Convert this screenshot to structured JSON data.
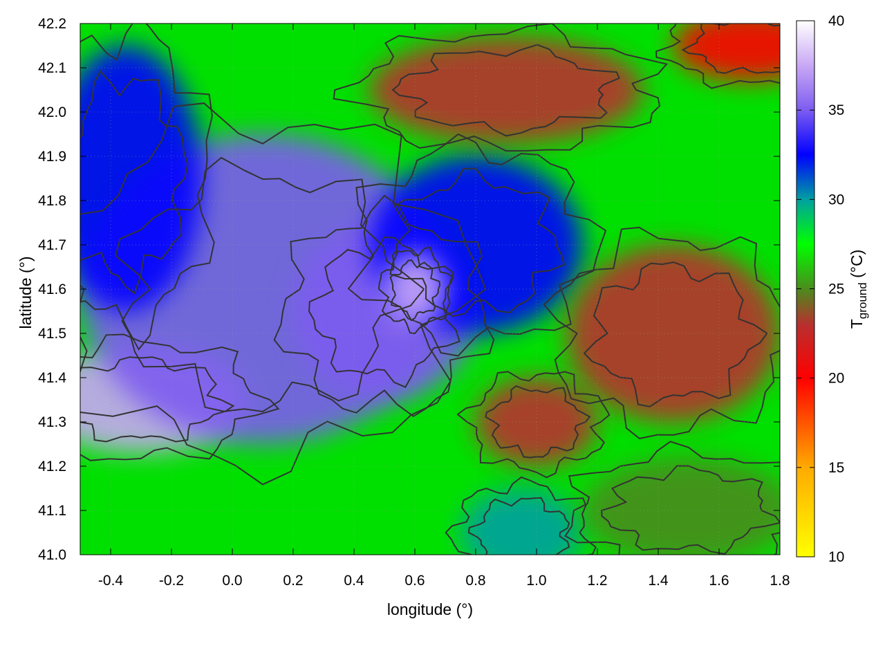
{
  "chart_data": {
    "type": "heatmap",
    "title": "",
    "xlabel": "longitude (°)",
    "ylabel": "latitude (°)",
    "xlim": [
      -0.5,
      1.8
    ],
    "ylim": [
      41.0,
      42.2
    ],
    "xticks": [
      -0.4,
      -0.2,
      0.0,
      0.2,
      0.4,
      0.6,
      0.8,
      1.0,
      1.2,
      1.4,
      1.6,
      1.8
    ],
    "xtick_labels": [
      "-0.4",
      "-0.2",
      "0.0",
      "0.2",
      "0.4",
      "0.6",
      "0.8",
      "1.0",
      "1.2",
      "1.4",
      "1.6",
      "1.8"
    ],
    "yticks": [
      41.0,
      41.1,
      41.2,
      41.3,
      41.4,
      41.5,
      41.6,
      41.7,
      41.8,
      41.9,
      42.0,
      42.1,
      42.2
    ],
    "ytick_labels": [
      "41.0",
      "41.1",
      "41.2",
      "41.3",
      "41.4",
      "41.5",
      "41.6",
      "41.7",
      "41.8",
      "41.9",
      "42.0",
      "42.1",
      "42.2"
    ],
    "colorbar": {
      "label_main": "T",
      "label_sub": "ground",
      "label_unit": " (°C)",
      "range": [
        10,
        40
      ],
      "ticks": [
        10,
        15,
        20,
        25,
        30,
        35,
        40
      ],
      "tick_labels": [
        "10",
        "15",
        "20",
        "25",
        "30",
        "35",
        "40"
      ],
      "stops": [
        {
          "value": 10,
          "color": "#ffff00"
        },
        {
          "value": 15,
          "color": "#ffaa00"
        },
        {
          "value": 20,
          "color": "#ff0000"
        },
        {
          "value": 23,
          "color": "#b8302e"
        },
        {
          "value": 25,
          "color": "#4a8c1c"
        },
        {
          "value": 27.5,
          "color": "#00ff00"
        },
        {
          "value": 30,
          "color": "#00a0a0"
        },
        {
          "value": 32.5,
          "color": "#0000ff"
        },
        {
          "value": 35,
          "color": "#7d5cf0"
        },
        {
          "value": 37.5,
          "color": "#c9a8f5"
        },
        {
          "value": 40,
          "color": "#ffffff"
        }
      ]
    },
    "field_features": [
      {
        "lon": -0.3,
        "lat": 41.35,
        "temp": 37,
        "rx": 0.35,
        "ry": 0.12
      },
      {
        "lon": 0.1,
        "lat": 41.6,
        "temp": 34,
        "rx": 0.6,
        "ry": 0.35
      },
      {
        "lon": -0.35,
        "lat": 41.85,
        "temp": 32,
        "rx": 0.25,
        "ry": 0.3
      },
      {
        "lon": 0.5,
        "lat": 41.55,
        "temp": 36,
        "rx": 0.3,
        "ry": 0.2
      },
      {
        "lon": 0.8,
        "lat": 41.7,
        "temp": 31.5,
        "rx": 0.35,
        "ry": 0.2
      },
      {
        "lon": 0.6,
        "lat": 41.6,
        "temp": 38,
        "rx": 0.1,
        "ry": 0.08
      },
      {
        "lon": 0.9,
        "lat": 42.05,
        "temp": 22.5,
        "rx": 0.45,
        "ry": 0.12
      },
      {
        "lon": 1.7,
        "lat": 42.15,
        "temp": 19.5,
        "rx": 0.25,
        "ry": 0.08
      },
      {
        "lon": 1.45,
        "lat": 41.5,
        "temp": 23,
        "rx": 0.35,
        "ry": 0.2
      },
      {
        "lon": 1.0,
        "lat": 41.3,
        "temp": 22.5,
        "rx": 0.2,
        "ry": 0.1
      },
      {
        "lon": 0.95,
        "lat": 41.05,
        "temp": 29,
        "rx": 0.2,
        "ry": 0.1
      },
      {
        "lon": 1.5,
        "lat": 41.1,
        "temp": 25,
        "rx": 0.35,
        "ry": 0.12
      }
    ]
  }
}
